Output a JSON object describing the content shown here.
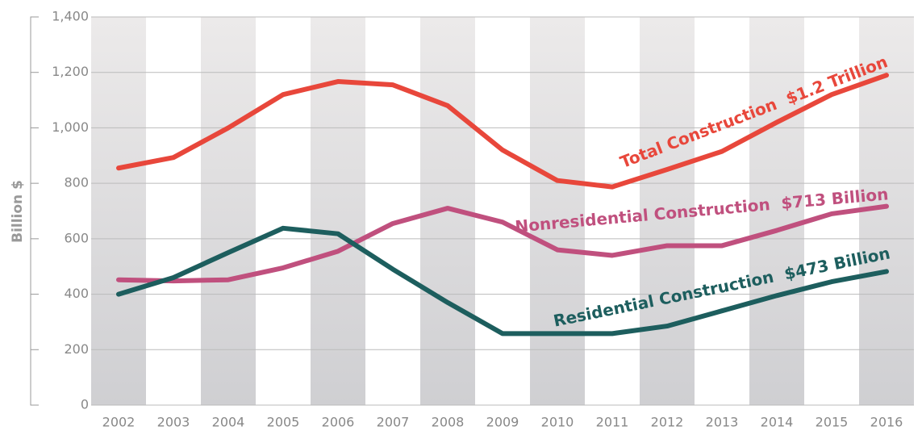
{
  "chart_data": {
    "type": "line",
    "ylabel": "Billion $",
    "categories": [
      "2002",
      "2003",
      "2004",
      "2005",
      "2006",
      "2007",
      "2008",
      "2009",
      "2010",
      "2011",
      "2012",
      "2013",
      "2014",
      "2015",
      "2016"
    ],
    "series": [
      {
        "name": "Total Construction  $1.2 Trillion",
        "color": "#e8473b",
        "values": [
          855,
          893,
          1000,
          1120,
          1167,
          1155,
          1080,
          920,
          810,
          787,
          850,
          915,
          1020,
          1120,
          1190
        ]
      },
      {
        "name": "Nonresidential Construction  $713 Billion",
        "color": "#c0507e",
        "values": [
          452,
          448,
          452,
          495,
          555,
          655,
          710,
          660,
          560,
          540,
          575,
          575,
          630,
          690,
          717
        ]
      },
      {
        "name": "Residential Construction  $473 Billion",
        "color": "#1d5e5e",
        "values": [
          400,
          460,
          550,
          638,
          618,
          490,
          370,
          258,
          258,
          258,
          285,
          340,
          395,
          445,
          482
        ]
      }
    ],
    "ylim": [
      0,
      1400
    ],
    "yticks": [
      0,
      200,
      400,
      600,
      800,
      {
        "value": 1000,
        "label": "1,000"
      },
      {
        "value": 1200,
        "label": "1,200"
      },
      {
        "value": 1400,
        "label": "1,400"
      }
    ],
    "grid": true
  }
}
